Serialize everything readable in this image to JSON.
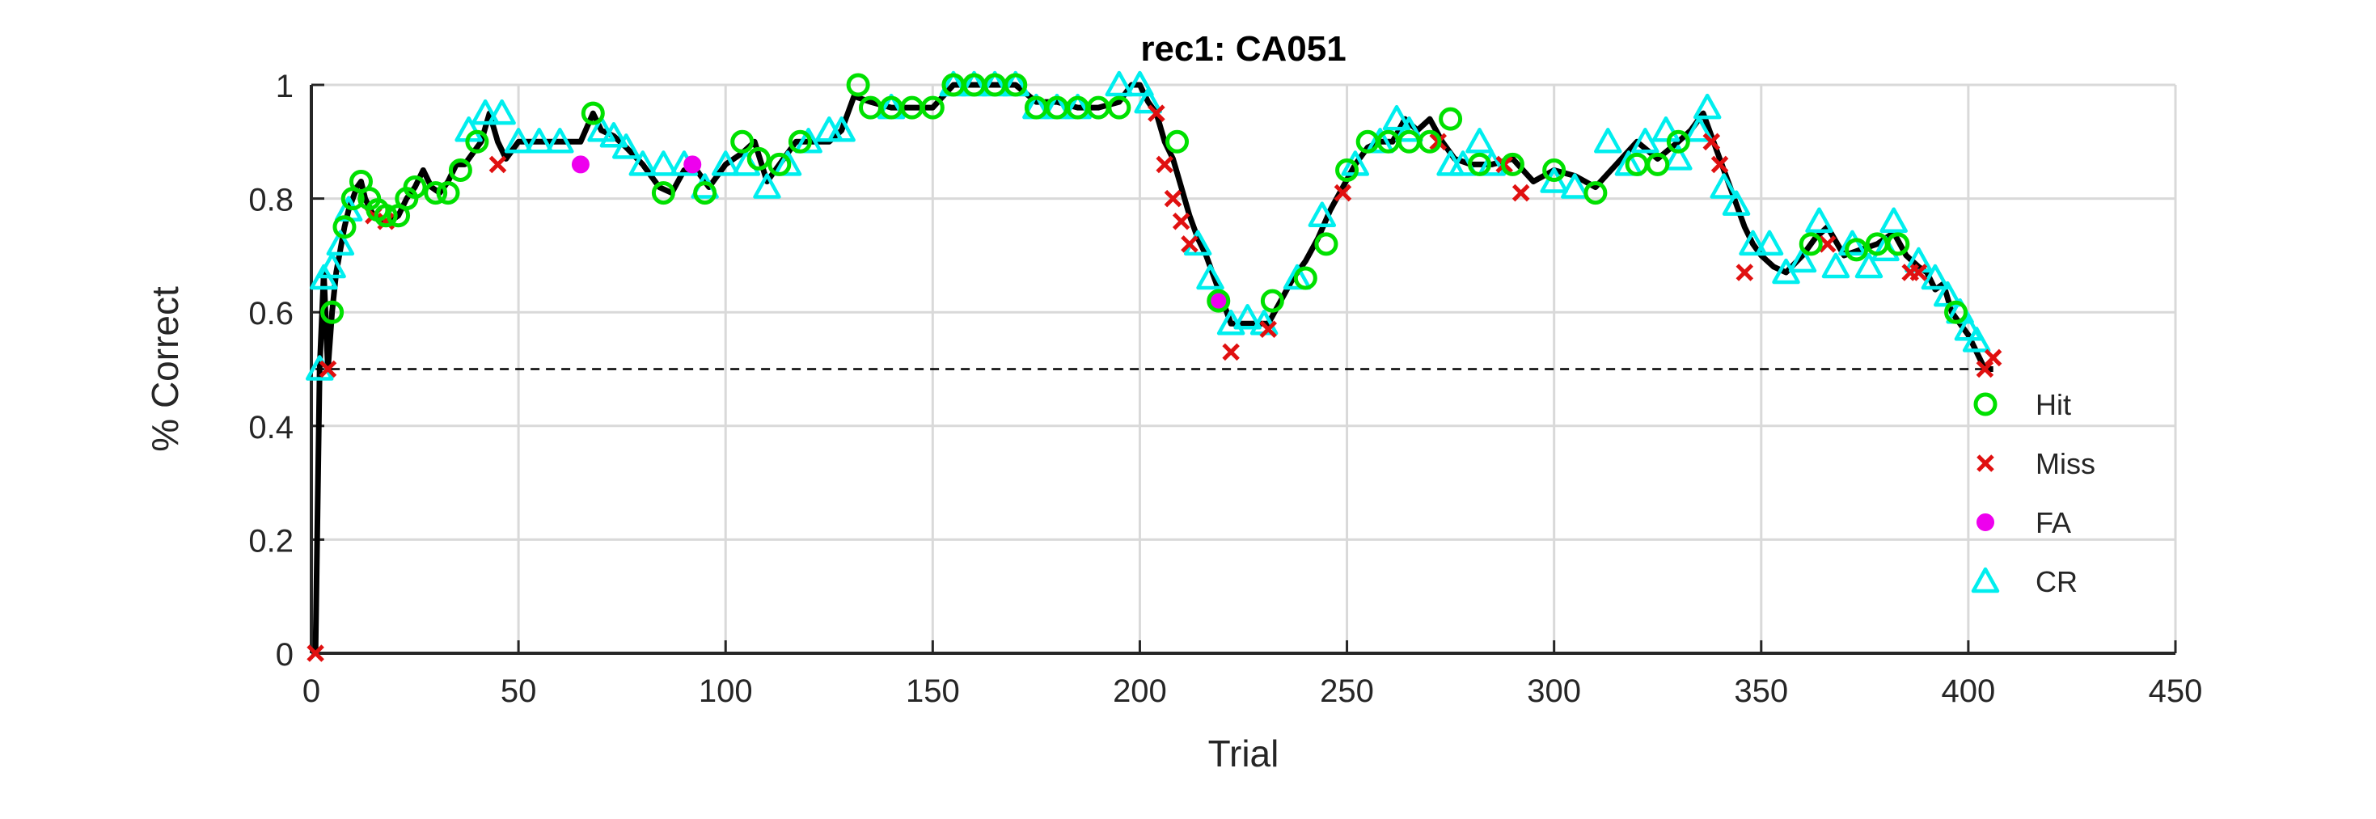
{
  "chart_data": {
    "type": "line",
    "title": "rec1: CA051",
    "xlabel": "Trial",
    "ylabel": "% Correct",
    "xlim": [
      0,
      450
    ],
    "ylim": [
      0,
      1
    ],
    "xticks": [
      "0",
      "50",
      "100",
      "150",
      "200",
      "250",
      "300",
      "350",
      "400",
      "450"
    ],
    "yticks": [
      "0",
      "0.2",
      "0.4",
      "0.6",
      "0.8",
      "1"
    ],
    "grid": true,
    "legend_position": "bottom-right",
    "reference_line": {
      "y": 0.5,
      "style": "dashed"
    },
    "colors": {
      "line": "#000000",
      "Hit": "#00e000",
      "Miss": "#e01010",
      "FA": "#ee00ee",
      "CR": "#00eeee",
      "grid": "#d9d9d9",
      "axis": "#262626"
    },
    "line": {
      "x": [
        1,
        2,
        3,
        4,
        5,
        6,
        7,
        8,
        9,
        10,
        11,
        12,
        13,
        15,
        17,
        19,
        21,
        23,
        25,
        27,
        29,
        31,
        33,
        35,
        37,
        39,
        41,
        43,
        45,
        47,
        50,
        55,
        60,
        65,
        68,
        70,
        73,
        76,
        80,
        84,
        87,
        90,
        93,
        96,
        100,
        104,
        107,
        110,
        113,
        117,
        121,
        125,
        128,
        131,
        135,
        140,
        145,
        150,
        155,
        160,
        165,
        170,
        175,
        180,
        185,
        190,
        195,
        198,
        200,
        202,
        204,
        206,
        208,
        210,
        212,
        214,
        216,
        218,
        220,
        222,
        225,
        228,
        231,
        234,
        237,
        240,
        243,
        246,
        249,
        252,
        255,
        258,
        261,
        264,
        267,
        270,
        273,
        276,
        280,
        285,
        290,
        295,
        300,
        305,
        310,
        315,
        320,
        325,
        330,
        333,
        336,
        338,
        340,
        342,
        344,
        346,
        348,
        350,
        353,
        356,
        360,
        363,
        366,
        370,
        374,
        378,
        382,
        385,
        388,
        390,
        392,
        394,
        396,
        398,
        400,
        402,
        404,
        406
      ],
      "y": [
        0,
        0.5,
        0.67,
        0.5,
        0.6,
        0.67,
        0.71,
        0.75,
        0.78,
        0.8,
        0.82,
        0.83,
        0.8,
        0.77,
        0.76,
        0.76,
        0.77,
        0.8,
        0.82,
        0.85,
        0.82,
        0.81,
        0.83,
        0.86,
        0.86,
        0.88,
        0.9,
        0.95,
        0.9,
        0.87,
        0.9,
        0.9,
        0.9,
        0.9,
        0.95,
        0.92,
        0.91,
        0.89,
        0.86,
        0.82,
        0.81,
        0.85,
        0.85,
        0.82,
        0.86,
        0.88,
        0.9,
        0.83,
        0.86,
        0.9,
        0.9,
        0.9,
        0.92,
        0.98,
        0.97,
        0.96,
        0.96,
        0.96,
        1,
        1,
        1,
        1,
        0.97,
        0.97,
        0.96,
        0.96,
        0.97,
        1,
        1,
        0.97,
        0.95,
        0.9,
        0.87,
        0.82,
        0.77,
        0.73,
        0.7,
        0.66,
        0.62,
        0.58,
        0.58,
        0.58,
        0.58,
        0.62,
        0.66,
        0.69,
        0.73,
        0.78,
        0.82,
        0.86,
        0.89,
        0.9,
        0.9,
        0.94,
        0.92,
        0.94,
        0.9,
        0.87,
        0.86,
        0.86,
        0.87,
        0.83,
        0.85,
        0.84,
        0.82,
        0.86,
        0.9,
        0.87,
        0.9,
        0.92,
        0.95,
        0.91,
        0.87,
        0.83,
        0.79,
        0.75,
        0.72,
        0.7,
        0.68,
        0.67,
        0.7,
        0.73,
        0.75,
        0.7,
        0.71,
        0.72,
        0.74,
        0.7,
        0.68,
        0.67,
        0.64,
        0.65,
        0.6,
        0.58,
        0.56,
        0.53,
        0.5,
        0.5
      ]
    },
    "series": [
      {
        "name": "Hit",
        "marker": "circle",
        "x": [
          5,
          8,
          10,
          12,
          14,
          16,
          18,
          21,
          23,
          25,
          30,
          33,
          36,
          40,
          68,
          85,
          95,
          104,
          108,
          113,
          118,
          132,
          135,
          140,
          145,
          150,
          155,
          160,
          165,
          170,
          175,
          180,
          185,
          190,
          195,
          209,
          219,
          232,
          240,
          245,
          250,
          255,
          260,
          265,
          270,
          275,
          282,
          290,
          300,
          310,
          320,
          325,
          330,
          362,
          373,
          378,
          383,
          397
        ],
        "y": [
          0.6,
          0.75,
          0.8,
          0.83,
          0.8,
          0.78,
          0.77,
          0.77,
          0.8,
          0.82,
          0.81,
          0.81,
          0.85,
          0.9,
          0.95,
          0.81,
          0.81,
          0.9,
          0.87,
          0.86,
          0.9,
          1,
          0.96,
          0.96,
          0.96,
          0.96,
          1,
          1,
          1,
          1,
          0.96,
          0.96,
          0.96,
          0.96,
          0.96,
          0.9,
          0.62,
          0.62,
          0.66,
          0.72,
          0.85,
          0.9,
          0.9,
          0.9,
          0.9,
          0.94,
          0.86,
          0.86,
          0.85,
          0.81,
          0.86,
          0.86,
          0.9,
          0.72,
          0.71,
          0.72,
          0.72,
          0.6
        ]
      },
      {
        "name": "Miss",
        "marker": "cross",
        "x": [
          1,
          4,
          15,
          18,
          45,
          204,
          206,
          208,
          210,
          212,
          222,
          231,
          249,
          272,
          288,
          292,
          338,
          340,
          346,
          366,
          386,
          388,
          404,
          406
        ],
        "y": [
          0,
          0.5,
          0.77,
          0.76,
          0.86,
          0.95,
          0.86,
          0.8,
          0.76,
          0.72,
          0.53,
          0.57,
          0.81,
          0.9,
          0.86,
          0.81,
          0.9,
          0.86,
          0.67,
          0.72,
          0.67,
          0.67,
          0.5,
          0.52
        ]
      },
      {
        "name": "FA",
        "marker": "dot",
        "x": [
          65,
          92,
          219
        ],
        "y": [
          0.86,
          0.86,
          0.62
        ]
      },
      {
        "name": "CR",
        "marker": "triangle",
        "x": [
          2,
          3,
          5,
          7,
          9,
          38,
          42,
          46,
          50,
          55,
          60,
          70,
          73,
          76,
          80,
          85,
          90,
          95,
          100,
          105,
          110,
          115,
          120,
          125,
          128,
          140,
          155,
          160,
          165,
          170,
          175,
          180,
          185,
          195,
          200,
          202,
          214,
          217,
          222,
          226,
          230,
          238,
          244,
          252,
          258,
          262,
          265,
          275,
          278,
          282,
          285,
          300,
          305,
          313,
          318,
          322,
          327,
          330,
          335,
          337,
          341,
          344,
          348,
          352,
          356,
          360,
          364,
          368,
          372,
          376,
          380,
          382,
          388,
          392,
          395,
          398,
          400,
          402
        ],
        "y": [
          0.5,
          0.66,
          0.68,
          0.72,
          0.78,
          0.92,
          0.95,
          0.95,
          0.9,
          0.9,
          0.9,
          0.92,
          0.91,
          0.89,
          0.86,
          0.86,
          0.86,
          0.82,
          0.86,
          0.86,
          0.82,
          0.86,
          0.9,
          0.92,
          0.92,
          0.96,
          1,
          1,
          1,
          1,
          0.96,
          0.96,
          0.96,
          1,
          1,
          0.97,
          0.72,
          0.66,
          0.58,
          0.59,
          0.58,
          0.66,
          0.77,
          0.86,
          0.9,
          0.94,
          0.92,
          0.86,
          0.86,
          0.9,
          0.86,
          0.83,
          0.82,
          0.9,
          0.86,
          0.9,
          0.92,
          0.87,
          0.92,
          0.96,
          0.82,
          0.79,
          0.72,
          0.72,
          0.67,
          0.69,
          0.76,
          0.68,
          0.72,
          0.68,
          0.71,
          0.76,
          0.69,
          0.66,
          0.63,
          0.6,
          0.57,
          0.55
        ]
      }
    ]
  }
}
